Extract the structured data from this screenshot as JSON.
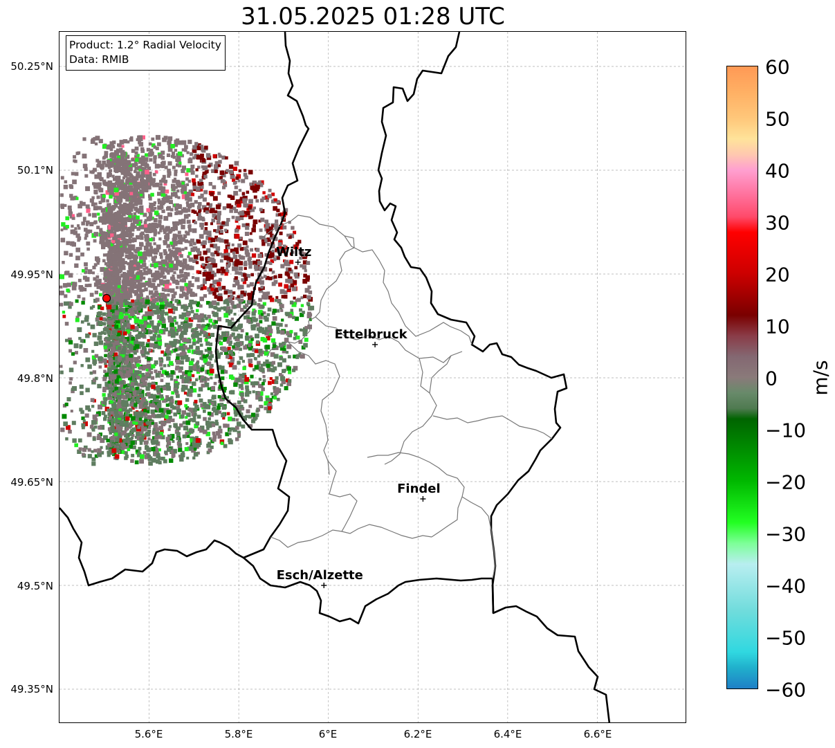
{
  "title": "31.05.2025 01:28 UTC",
  "info": {
    "product": "Product: 1.2° Radial Velocity",
    "data": "Data: RMIB"
  },
  "axes": {
    "lat_labels": [
      "50.25°N",
      "50.1°N",
      "49.95°N",
      "49.8°N",
      "49.65°N",
      "49.5°N",
      "49.35°N"
    ],
    "lon_labels": [
      "5.6°E",
      "5.8°E",
      "6°E",
      "6.2°E",
      "6.4°E",
      "6.6°E"
    ],
    "lat_range": [
      49.3,
      50.3
    ],
    "lon_range": [
      5.4,
      6.8
    ]
  },
  "radar_site": {
    "lon": 5.505,
    "lat": 49.915,
    "color": "#ff0000"
  },
  "cities": [
    {
      "name": "Wiltz",
      "lon": 5.932,
      "lat": 49.967
    },
    {
      "name": "Ettelbruck",
      "lon": 6.104,
      "lat": 49.848
    },
    {
      "name": "Findel",
      "lon": 6.211,
      "lat": 49.625
    },
    {
      "name": "Esch/Alzette",
      "lon": 5.99,
      "lat": 49.5
    }
  ],
  "colorbar": {
    "unit": "m/s",
    "min": -60,
    "max": 60,
    "ticks": [
      "60",
      "50",
      "40",
      "30",
      "20",
      "10",
      "0",
      "−10",
      "−20",
      "−30",
      "−40",
      "−50",
      "−60"
    ],
    "stops": [
      {
        "v": 60,
        "color": "#ff9955"
      },
      {
        "v": 55,
        "color": "#ffb064"
      },
      {
        "v": 50,
        "color": "#ffc77a"
      },
      {
        "v": 46,
        "color": "#ffe39a"
      },
      {
        "v": 43,
        "color": "#ffc8b0"
      },
      {
        "v": 40,
        "color": "#ff9fd0"
      },
      {
        "v": 35,
        "color": "#ff6f9a"
      },
      {
        "v": 31,
        "color": "#ff4a6a"
      },
      {
        "v": 28,
        "color": "#ff0000"
      },
      {
        "v": 20,
        "color": "#cc0000"
      },
      {
        "v": 12,
        "color": "#7a0000"
      },
      {
        "v": 8,
        "color": "#8a3c48"
      },
      {
        "v": 4,
        "color": "#846872"
      },
      {
        "v": 0,
        "color": "#8a7a7a"
      },
      {
        "v": -3,
        "color": "#688a6a"
      },
      {
        "v": -6,
        "color": "#4f7a50"
      },
      {
        "v": -8,
        "color": "#006400"
      },
      {
        "v": -20,
        "color": "#00b800"
      },
      {
        "v": -28,
        "color": "#22ff22"
      },
      {
        "v": -32,
        "color": "#7dff98"
      },
      {
        "v": -36,
        "color": "#b8eef0"
      },
      {
        "v": -45,
        "color": "#70dcdc"
      },
      {
        "v": -53,
        "color": "#30d8e0"
      },
      {
        "v": -56,
        "color": "#20b0cc"
      },
      {
        "v": -60,
        "color": "#1f7fc6"
      }
    ]
  },
  "palette": {
    "neutral": "#847377",
    "greenish": "#5f7d60",
    "dark_red": "#7a0000",
    "red": "#d20000",
    "bright_red": "#ff1a1a",
    "pink": "#ff5f8a",
    "light_green": "#22ee22",
    "green": "#008a00"
  }
}
